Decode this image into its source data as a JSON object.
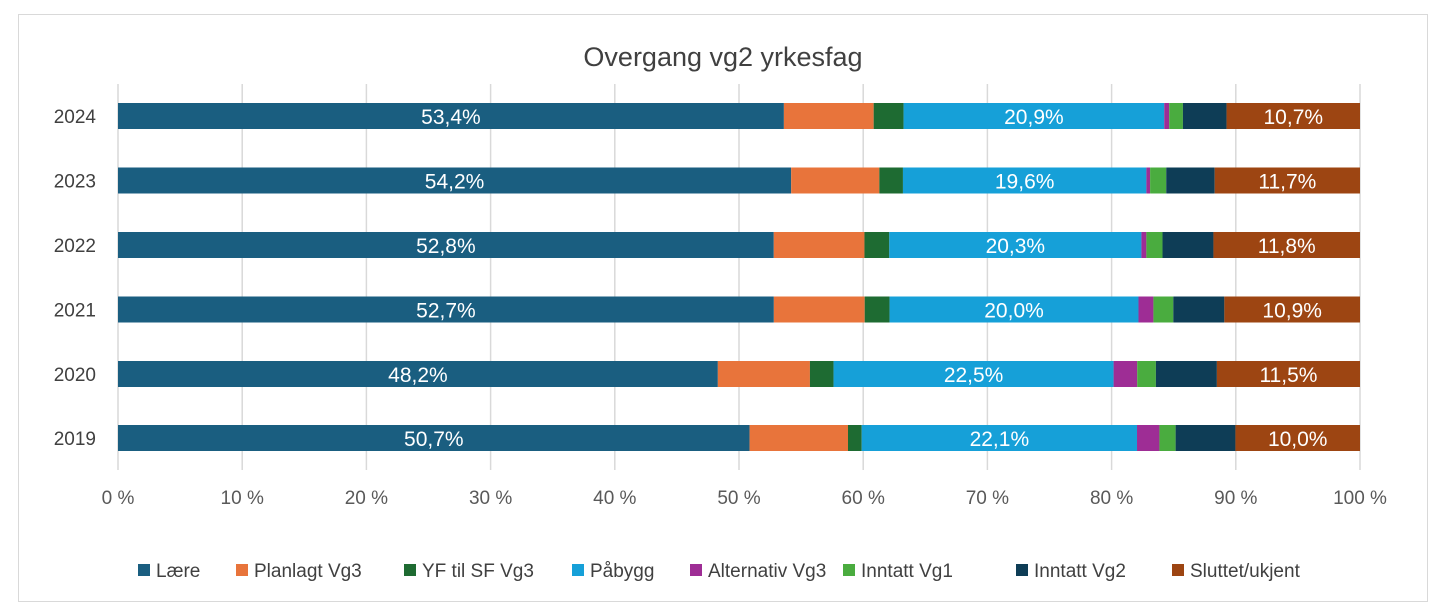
{
  "chart_data": {
    "type": "bar",
    "orientation": "horizontal",
    "stacked": "percent",
    "title": "Overgang vg2 yrkesfag",
    "categories": [
      "2024",
      "2023",
      "2022",
      "2021",
      "2020",
      "2019"
    ],
    "x_ticks": [
      "0 %",
      "10 %",
      "20 %",
      "30 %",
      "40 %",
      "50 %",
      "60 %",
      "70 %",
      "80 %",
      "90 %",
      "100 %"
    ],
    "xlim": [
      0,
      100
    ],
    "grid": true,
    "legend_position": "bottom",
    "series": [
      {
        "name": "Lære",
        "color": "#1a5e80",
        "values": [
          53.4,
          54.2,
          52.8,
          52.7,
          48.2,
          50.7
        ],
        "labels": [
          "53,4%",
          "54,2%",
          "52,8%",
          "52,7%",
          "48,2%",
          "50,7%"
        ]
      },
      {
        "name": "Planlagt Vg3",
        "color": "#e8743b",
        "values": [
          7.2,
          7.1,
          7.3,
          7.3,
          7.4,
          7.9
        ]
      },
      {
        "name": "YF til SF Vg3",
        "color": "#1e6b32",
        "values": [
          2.4,
          1.9,
          2.0,
          2.0,
          1.9,
          1.1
        ]
      },
      {
        "name": "Påbygg",
        "color": "#16a0d8",
        "values": [
          20.9,
          19.6,
          20.3,
          20.0,
          22.5,
          22.1
        ],
        "labels": [
          "20,9%",
          "19,6%",
          "20,3%",
          "20,0%",
          "22,5%",
          "22,1%"
        ]
      },
      {
        "name": "Alternativ Vg3",
        "color": "#9e2d95",
        "values": [
          0.4,
          0.3,
          0.4,
          1.2,
          1.9,
          1.8
        ]
      },
      {
        "name": "Inntatt Vg1",
        "color": "#4aac3f",
        "values": [
          1.1,
          1.3,
          1.3,
          1.6,
          1.5,
          1.3
        ]
      },
      {
        "name": "Inntatt Vg2",
        "color": "#0e3d56",
        "values": [
          3.5,
          3.9,
          4.1,
          4.1,
          4.9,
          4.8
        ]
      },
      {
        "name": "Sluttet/ukjent",
        "color": "#9d4512",
        "values": [
          10.7,
          11.7,
          11.8,
          10.9,
          11.5,
          10.0
        ],
        "labels": [
          "10,7%",
          "11,7%",
          "11,8%",
          "10,9%",
          "11,5%",
          "10,0%"
        ]
      }
    ]
  }
}
